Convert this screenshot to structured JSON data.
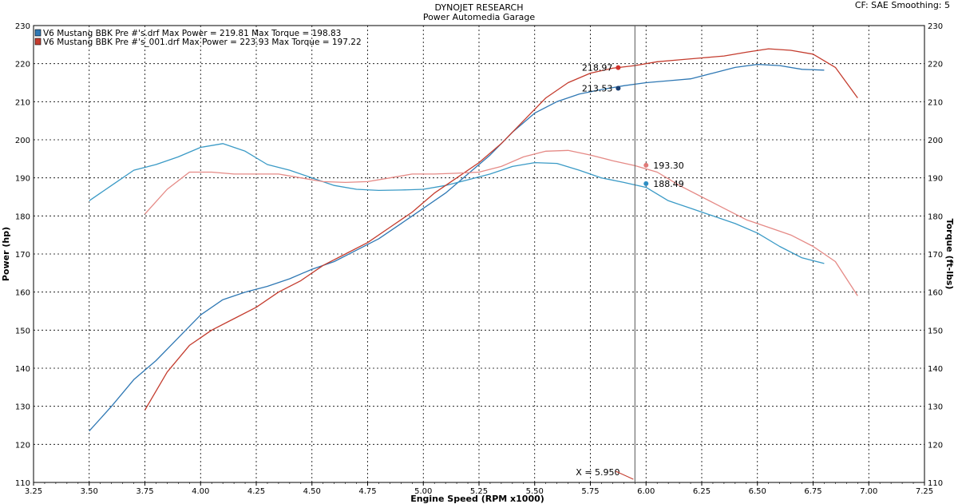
{
  "header": {
    "title": "DYNOJET RESEARCH",
    "subtitle": "Power Automedia Garage",
    "cf_info": "CF: SAE  Smoothing: 5"
  },
  "colors": {
    "run1_power": "#2f78b4",
    "run1_torque": "#3a9ac6",
    "run2_power": "#c43c2e",
    "run2_torque": "#e58a86",
    "grid": "#000000",
    "cursor": "#555555",
    "marker_dark_blue": "#1b3f72",
    "marker_blue": "#2f8fc4",
    "marker_red": "#d0302a",
    "marker_pink": "#e07a78"
  },
  "chart_data": {
    "type": "line",
    "xlabel": "Engine Speed (RPM x1000)",
    "ylabel": "Power (hp)",
    "y2label": "Torque (ft-lbs)",
    "xlim": [
      3.25,
      7.25
    ],
    "ylim": [
      110,
      230
    ],
    "y2lim": [
      110,
      230
    ],
    "x_ticks": [
      "3.25",
      "3.50",
      "3.75",
      "4.00",
      "4.25",
      "4.50",
      "4.75",
      "5.00",
      "5.25",
      "5.50",
      "5.75",
      "6.00",
      "6.25",
      "6.50",
      "6.75",
      "7.00",
      "7.25"
    ],
    "y_ticks": [
      "110",
      "120",
      "130",
      "140",
      "150",
      "160",
      "170",
      "180",
      "190",
      "200",
      "210",
      "220",
      "230"
    ],
    "grid": true,
    "legend": [
      {
        "swatch": "#2f78b4",
        "label": "V6 Mustang BBK Pre #'s.drf Max Power = 219.81    Max Torque = 198.83"
      },
      {
        "swatch": "#c43c2e",
        "label": "V6 Mustang BBK Pre #'s_001.drf Max Power = 223.93    Max Torque = 197.22"
      }
    ],
    "legend_position": "top-left",
    "cursor": {
      "x": 5.95,
      "label": "X = 5.950"
    },
    "series": [
      {
        "key": "run1_power",
        "axis": "left",
        "x": [
          3.5,
          3.6,
          3.7,
          3.8,
          3.9,
          4.0,
          4.1,
          4.2,
          4.3,
          4.4,
          4.5,
          4.6,
          4.7,
          4.8,
          4.9,
          5.0,
          5.1,
          5.2,
          5.3,
          5.4,
          5.5,
          5.6,
          5.7,
          5.8,
          5.9,
          6.0,
          6.1,
          6.2,
          6.3,
          6.4,
          6.5,
          6.6,
          6.7,
          6.8
        ],
        "values": [
          123.5,
          130,
          137,
          142,
          148,
          154,
          158,
          160,
          161.5,
          163.5,
          166,
          168,
          171,
          174,
          178,
          182,
          186,
          191,
          196,
          202,
          207,
          210,
          212,
          213.2,
          214.2,
          215,
          215.5,
          216,
          217.5,
          219,
          219.8,
          219.5,
          218.5,
          218.3
        ]
      },
      {
        "key": "run1_torque",
        "axis": "right",
        "x": [
          3.5,
          3.6,
          3.7,
          3.8,
          3.9,
          4.0,
          4.1,
          4.2,
          4.3,
          4.4,
          4.5,
          4.6,
          4.7,
          4.8,
          4.9,
          5.0,
          5.1,
          5.2,
          5.3,
          5.4,
          5.5,
          5.6,
          5.7,
          5.8,
          5.9,
          6.0,
          6.1,
          6.2,
          6.3,
          6.4,
          6.5,
          6.6,
          6.7,
          6.8
        ],
        "values": [
          184,
          188,
          192,
          193.5,
          195.5,
          198,
          199,
          197,
          193.5,
          192,
          190,
          188,
          187,
          186.7,
          186.8,
          187,
          188,
          189.5,
          191,
          193,
          194,
          193.8,
          192,
          190,
          188.8,
          187.5,
          184,
          182,
          180,
          178,
          175.5,
          172,
          169,
          167.5
        ]
      },
      {
        "key": "run2_power",
        "axis": "left",
        "x": [
          3.75,
          3.85,
          3.95,
          4.05,
          4.15,
          4.25,
          4.35,
          4.45,
          4.55,
          4.65,
          4.75,
          4.85,
          4.95,
          5.05,
          5.15,
          5.25,
          5.35,
          5.45,
          5.55,
          5.65,
          5.75,
          5.85,
          5.95,
          6.05,
          6.15,
          6.25,
          6.35,
          6.45,
          6.55,
          6.65,
          6.75,
          6.85,
          6.95
        ],
        "values": [
          129,
          139,
          146,
          150,
          153,
          156,
          160,
          163,
          167,
          170,
          173,
          177,
          181,
          186,
          190,
          194,
          199,
          205,
          211,
          215,
          217.5,
          218.8,
          219.5,
          220.5,
          221,
          221.5,
          222,
          223,
          223.9,
          223.5,
          222.5,
          219,
          211
        ]
      },
      {
        "key": "run2_torque",
        "axis": "right",
        "x": [
          3.75,
          3.85,
          3.95,
          4.05,
          4.15,
          4.25,
          4.35,
          4.45,
          4.55,
          4.65,
          4.75,
          4.85,
          4.95,
          5.05,
          5.15,
          5.25,
          5.35,
          5.45,
          5.55,
          5.65,
          5.75,
          5.85,
          5.95,
          6.05,
          6.15,
          6.25,
          6.35,
          6.45,
          6.55,
          6.65,
          6.75,
          6.85,
          6.95
        ],
        "values": [
          180.5,
          187,
          191.5,
          191.5,
          191,
          191,
          191,
          190,
          189,
          188.8,
          189,
          190,
          191,
          191,
          191.2,
          191.5,
          193,
          195.5,
          197,
          197.2,
          196,
          194.5,
          193.2,
          191.5,
          188,
          185,
          182,
          179,
          177,
          175,
          172,
          168,
          159
        ]
      }
    ],
    "cursor_markers": [
      {
        "x": 5.875,
        "y": 218.97,
        "label": "218.97",
        "color_key": "marker_red",
        "side": "left"
      },
      {
        "x": 5.875,
        "y": 213.53,
        "label": "213.53",
        "color_key": "marker_dark_blue",
        "side": "left"
      },
      {
        "x": 6.0,
        "y": 193.3,
        "label": "193.30",
        "color_key": "marker_pink",
        "side": "right"
      },
      {
        "x": 6.0,
        "y": 188.49,
        "label": "188.49",
        "color_key": "marker_blue",
        "side": "right"
      }
    ]
  }
}
